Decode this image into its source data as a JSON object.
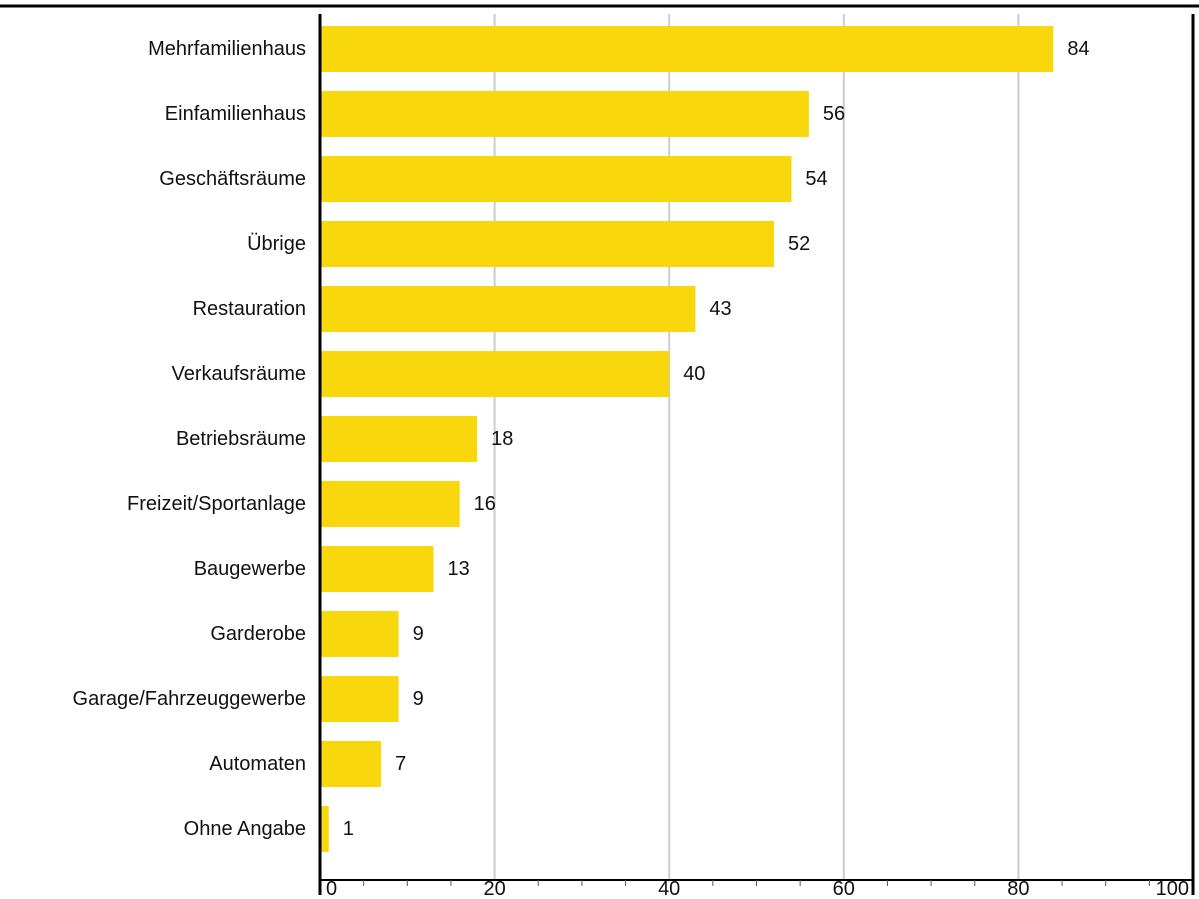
{
  "chart_data": {
    "type": "bar",
    "orientation": "horizontal",
    "categories": [
      "Mehrfamilienhaus",
      "Einfamilienhaus",
      "Geschäftsräume",
      "Übrige",
      "Restauration",
      "Verkaufsräume",
      "Betriebsräume",
      "Freizeit/Sportanlage",
      "Baugewerbe",
      "Garderobe",
      "Garage/Fahrzeuggewerbe",
      "Automaten",
      "Ohne Angabe"
    ],
    "values": [
      84,
      56,
      54,
      52,
      43,
      40,
      18,
      16,
      13,
      9,
      9,
      7,
      1
    ],
    "xlim": [
      0,
      100
    ],
    "x_ticks": [
      0,
      20,
      40,
      60,
      80,
      100
    ],
    "grid": true,
    "legend": "none",
    "colors": {
      "bar": "#f8d80c",
      "grid": "#cccccc",
      "axis": "#000000"
    }
  }
}
